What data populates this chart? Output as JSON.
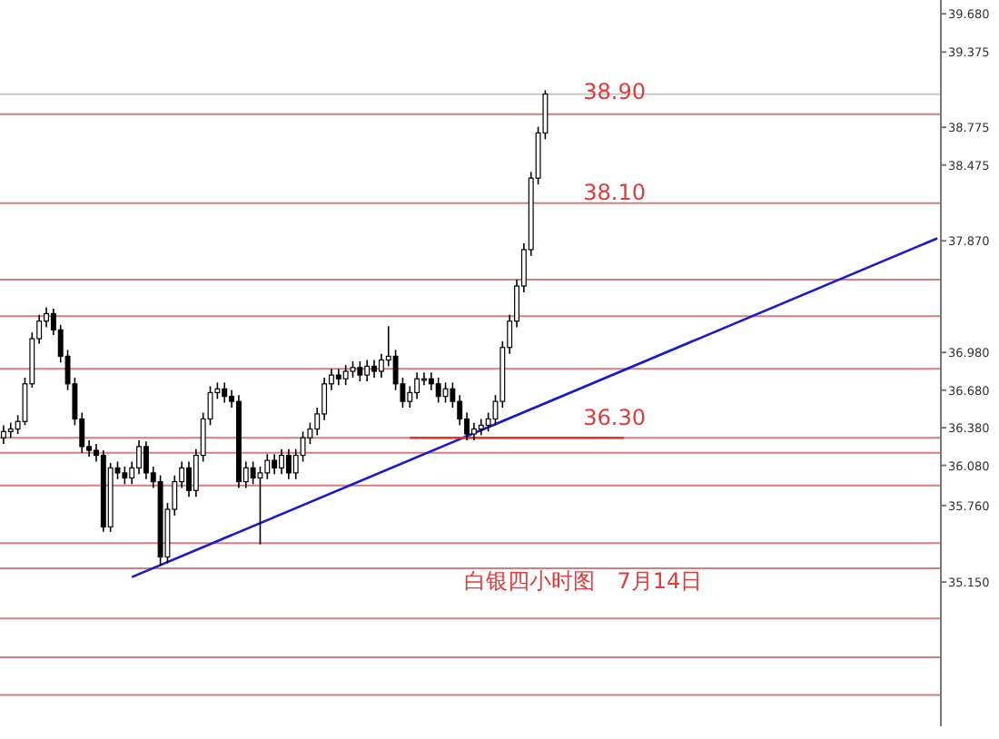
{
  "chart_data": {
    "type": "candlestick",
    "categories": [
      null,
      null,
      null,
      null,
      null,
      null,
      null,
      null,
      null,
      null,
      null,
      null,
      null,
      null,
      null,
      null,
      null,
      null,
      null,
      null,
      null,
      null,
      null,
      null,
      null,
      null,
      null,
      null,
      null,
      null,
      null,
      null,
      null,
      null,
      null,
      null,
      null,
      null,
      null,
      null,
      null,
      null,
      null,
      null,
      null,
      null,
      null,
      null,
      null,
      null,
      null,
      null,
      null,
      null,
      null,
      null,
      null,
      null,
      null,
      null,
      null,
      null,
      null,
      null,
      null,
      null,
      null,
      null,
      null,
      null,
      null,
      null,
      null,
      null,
      null,
      null,
      null,
      null,
      null,
      null,
      null,
      null,
      null,
      null,
      null,
      null,
      null,
      null,
      null,
      null,
      null,
      null,
      null,
      null,
      null,
      null,
      null,
      null,
      null,
      null,
      null,
      null,
      null,
      null,
      null,
      null,
      null,
      null,
      null,
      null,
      null,
      null,
      null,
      null,
      null,
      null,
      null,
      null,
      null,
      null,
      null,
      null,
      null,
      null,
      null,
      null,
      null,
      null,
      null,
      null,
      null,
      null
    ],
    "ohlc": [
      [
        36.3,
        36.4,
        36.25,
        36.35
      ],
      [
        36.35,
        36.42,
        36.3,
        36.37
      ],
      [
        36.37,
        36.48,
        36.33,
        36.43
      ],
      [
        36.43,
        36.78,
        36.4,
        36.73
      ],
      [
        36.73,
        37.14,
        36.7,
        37.09
      ],
      [
        37.09,
        37.28,
        37.05,
        37.23
      ],
      [
        37.23,
        37.34,
        37.18,
        37.29
      ],
      [
        37.29,
        37.33,
        37.12,
        37.16
      ],
      [
        37.16,
        37.2,
        36.9,
        36.95
      ],
      [
        36.95,
        37.0,
        36.68,
        36.73
      ],
      [
        36.73,
        36.78,
        36.4,
        36.45
      ],
      [
        36.45,
        36.5,
        36.18,
        36.23
      ],
      [
        36.23,
        36.28,
        36.15,
        36.2
      ],
      [
        36.2,
        36.25,
        36.11,
        36.16
      ],
      [
        36.16,
        36.2,
        35.55,
        35.59
      ],
      [
        35.59,
        36.1,
        35.55,
        36.06
      ],
      [
        36.06,
        36.11,
        35.97,
        36.02
      ],
      [
        36.02,
        36.07,
        35.93,
        35.98
      ],
      [
        35.98,
        36.11,
        35.93,
        36.06
      ],
      [
        36.06,
        36.28,
        36.01,
        36.23
      ],
      [
        36.23,
        36.27,
        35.97,
        36.02
      ],
      [
        36.02,
        36.07,
        35.9,
        35.95
      ],
      [
        35.95,
        36.0,
        35.28,
        35.35
      ],
      [
        35.35,
        35.78,
        35.3,
        35.73
      ],
      [
        35.73,
        36.0,
        35.68,
        35.95
      ],
      [
        35.95,
        36.11,
        35.9,
        36.06
      ],
      [
        36.06,
        36.11,
        35.83,
        35.88
      ],
      [
        35.88,
        36.21,
        35.83,
        36.16
      ],
      [
        36.16,
        36.5,
        36.11,
        36.45
      ],
      [
        36.45,
        36.71,
        36.4,
        36.66
      ],
      [
        36.66,
        36.74,
        36.61,
        36.69
      ],
      [
        36.69,
        36.74,
        36.58,
        36.63
      ],
      [
        36.63,
        36.68,
        36.54,
        36.59
      ],
      [
        36.59,
        36.64,
        35.9,
        35.95
      ],
      [
        35.95,
        36.11,
        35.9,
        36.06
      ],
      [
        36.06,
        36.11,
        35.93,
        35.98
      ],
      [
        35.98,
        36.07,
        35.45,
        36.02
      ],
      [
        36.02,
        36.17,
        35.97,
        36.12
      ],
      [
        36.12,
        36.17,
        36.01,
        36.06
      ],
      [
        36.06,
        36.21,
        36.01,
        36.16
      ],
      [
        36.16,
        36.21,
        35.97,
        36.02
      ],
      [
        36.02,
        36.21,
        35.97,
        36.16
      ],
      [
        36.16,
        36.35,
        36.11,
        36.3
      ],
      [
        36.3,
        36.42,
        36.25,
        36.37
      ],
      [
        36.37,
        36.54,
        36.32,
        36.49
      ],
      [
        36.49,
        36.78,
        36.44,
        36.73
      ],
      [
        36.73,
        36.85,
        36.68,
        36.8
      ],
      [
        36.8,
        36.85,
        36.72,
        36.77
      ],
      [
        36.77,
        36.88,
        36.72,
        36.83
      ],
      [
        36.83,
        36.91,
        36.78,
        36.86
      ],
      [
        36.86,
        36.91,
        36.75,
        36.8
      ],
      [
        36.8,
        36.92,
        36.75,
        36.87
      ],
      [
        36.87,
        36.92,
        36.78,
        36.83
      ],
      [
        36.83,
        36.97,
        36.78,
        36.92
      ],
      [
        36.92,
        37.19,
        36.87,
        36.95
      ],
      [
        36.95,
        37.0,
        36.68,
        36.73
      ],
      [
        36.73,
        36.78,
        36.54,
        36.59
      ],
      [
        36.59,
        36.71,
        36.54,
        36.66
      ],
      [
        36.66,
        36.82,
        36.61,
        36.77
      ],
      [
        36.77,
        36.82,
        36.72,
        36.77
      ],
      [
        36.77,
        36.82,
        36.68,
        36.73
      ],
      [
        36.73,
        36.78,
        36.58,
        36.63
      ],
      [
        36.63,
        36.74,
        36.58,
        36.69
      ],
      [
        36.69,
        36.74,
        36.54,
        36.59
      ],
      [
        36.59,
        36.64,
        36.4,
        36.45
      ],
      [
        36.45,
        36.5,
        36.28,
        36.33
      ],
      [
        36.33,
        36.42,
        36.28,
        36.37
      ],
      [
        36.37,
        36.45,
        36.32,
        36.4
      ],
      [
        36.4,
        36.5,
        36.35,
        36.45
      ],
      [
        36.45,
        36.64,
        36.4,
        36.59
      ],
      [
        36.59,
        37.07,
        36.54,
        37.02
      ],
      [
        37.02,
        37.28,
        36.97,
        37.23
      ],
      [
        37.23,
        37.56,
        37.18,
        37.51
      ],
      [
        37.51,
        37.85,
        37.46,
        37.8
      ],
      [
        37.8,
        38.42,
        37.75,
        38.37
      ],
      [
        38.37,
        38.78,
        38.32,
        38.73
      ],
      [
        38.73,
        39.07,
        38.68,
        39.04
      ],
      null,
      null,
      null,
      null,
      null,
      null,
      null,
      null,
      null,
      null,
      null,
      null,
      null,
      null,
      null,
      null,
      null,
      null,
      null,
      null,
      null,
      null,
      null,
      null,
      null,
      null,
      null,
      null,
      null,
      null,
      null,
      null,
      null,
      null,
      null,
      null,
      null,
      null,
      null,
      null,
      null,
      null,
      null,
      null,
      null,
      null,
      null,
      null,
      null,
      null,
      null,
      null,
      null,
      null,
      null
    ],
    "series": [
      {
        "type": "line",
        "color": "#1a1acc",
        "values": [
          null,
          null,
          null,
          null,
          null,
          null,
          null,
          null,
          null,
          null,
          null,
          null,
          null,
          null,
          null,
          null,
          null,
          null,
          35.19,
          null,
          null,
          null,
          null,
          null,
          null,
          null,
          null,
          null,
          null,
          null,
          null,
          null,
          null,
          null,
          null,
          null,
          null,
          null,
          null,
          null,
          null,
          null,
          null,
          null,
          null,
          null,
          null,
          null,
          null,
          null,
          null,
          null,
          null,
          null,
          null,
          null,
          null,
          null,
          null,
          null,
          null,
          null,
          null,
          null,
          null,
          null,
          null,
          null,
          null,
          null,
          null,
          null,
          null,
          null,
          null,
          null,
          null,
          null,
          null,
          null,
          null,
          null,
          null,
          null,
          null,
          null,
          null,
          null,
          null,
          null,
          null,
          null,
          null,
          null,
          null,
          null,
          null,
          null,
          null,
          null,
          null,
          null,
          null,
          null,
          null,
          null,
          null,
          null,
          null,
          null,
          null,
          null,
          null,
          null,
          null,
          null,
          null,
          null,
          null,
          null,
          null,
          null,
          null,
          null,
          null,
          null,
          null,
          null,
          null,
          null,
          null,
          37.89
        ]
      },
      {
        "type": "line",
        "color": "#e8302a",
        "values": [
          null,
          null,
          null,
          null,
          null,
          null,
          null,
          null,
          null,
          null,
          null,
          null,
          null,
          null,
          null,
          null,
          null,
          null,
          null,
          null,
          null,
          null,
          null,
          null,
          null,
          null,
          null,
          null,
          null,
          null,
          null,
          null,
          null,
          null,
          null,
          null,
          null,
          null,
          null,
          null,
          null,
          null,
          null,
          null,
          null,
          null,
          null,
          null,
          null,
          null,
          null,
          null,
          null,
          null,
          null,
          null,
          null,
          36.3,
          null,
          null,
          null,
          null,
          null,
          null,
          null,
          null,
          null,
          null,
          null,
          null,
          null,
          null,
          null,
          null,
          null,
          null,
          null,
          null,
          null,
          null,
          null,
          null,
          null,
          null,
          null,
          null,
          null,
          36.3,
          null,
          null,
          null,
          null,
          null,
          null,
          null,
          null,
          null,
          null,
          null,
          null,
          null,
          null,
          null,
          null,
          null,
          null,
          null,
          null,
          null,
          null,
          null,
          null,
          null,
          null,
          null,
          null,
          null,
          null,
          null,
          null,
          null,
          null,
          null,
          null,
          null,
          null,
          null,
          null,
          null,
          null,
          null,
          null
        ]
      }
    ],
    "ref_lines": [
      {
        "axis": "y",
        "value": 39.04,
        "color": "#c8c8c8"
      },
      {
        "axis": "y",
        "value": 38.88,
        "color": "#d08080"
      },
      {
        "axis": "y",
        "value": 38.17,
        "color": "#d08080"
      },
      {
        "axis": "y",
        "value": 37.56,
        "color": "#d08080"
      },
      {
        "axis": "y",
        "value": 37.27,
        "color": "#d08080"
      },
      {
        "axis": "y",
        "value": 36.85,
        "color": "#d08080"
      },
      {
        "axis": "y",
        "value": 36.3,
        "color": "#d08080"
      },
      {
        "axis": "y",
        "value": 36.18,
        "color": "#d08080"
      },
      {
        "axis": "y",
        "value": 35.92,
        "color": "#d08080"
      },
      {
        "axis": "y",
        "value": 35.46,
        "color": "#d08080"
      },
      {
        "axis": "y",
        "value": 35.26,
        "color": "#d08080"
      },
      {
        "axis": "y",
        "value": 34.86,
        "color": "#d08080"
      },
      {
        "axis": "y",
        "value": 34.55,
        "color": "#d08080"
      },
      {
        "axis": "y",
        "value": 34.25,
        "color": "#d08080"
      }
    ],
    "annotations": [
      {
        "text": "38.90",
        "y": 38.9
      },
      {
        "text": "38.10",
        "y": 38.1
      },
      {
        "text": "36.30",
        "y": 36.3
      },
      "白银四小时图　7月14日"
    ],
    "ylim": [
      34.0,
      39.79
    ],
    "yticks": [
      {
        "value": 39.68,
        "label": "39.680"
      },
      {
        "value": 39.375,
        "label": "39.375"
      },
      {
        "value": 38.775,
        "label": "38.775"
      },
      {
        "value": 38.475,
        "label": "38.475"
      },
      {
        "value": 37.87,
        "label": "37.870"
      },
      {
        "value": 36.98,
        "label": "36.980"
      },
      {
        "value": 36.68,
        "label": "36.680"
      },
      {
        "value": 36.38,
        "label": "36.380"
      },
      {
        "value": 36.08,
        "label": "36.080"
      },
      {
        "value": 35.76,
        "label": "35.760"
      },
      {
        "value": 35.15,
        "label": "35.150"
      }
    ],
    "tick_labels": "y"
  }
}
